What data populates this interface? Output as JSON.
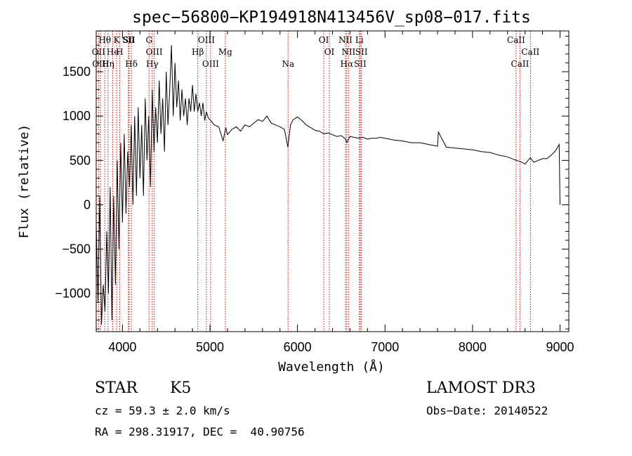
{
  "chart_data": {
    "type": "line",
    "title": "spec−56800−KP194918N413456V_sp08−017.fits",
    "xlabel": "Wavelength (Å)",
    "ylabel": "Flux (relative)",
    "xlim": [
      3700,
      9100
    ],
    "ylim": [
      -1430,
      1960
    ],
    "xticks": [
      4000,
      5000,
      6000,
      7000,
      8000,
      9000
    ],
    "yticks": [
      -1000,
      -500,
      0,
      500,
      1000,
      1500
    ],
    "ytick_labels": [
      "−1000",
      "−500",
      "0",
      "500",
      "1000",
      "1500"
    ],
    "series": [
      {
        "name": "flux",
        "x": [
          3700,
          3720,
          3740,
          3760,
          3780,
          3800,
          3820,
          3840,
          3860,
          3880,
          3900,
          3920,
          3940,
          3960,
          3980,
          4000,
          4020,
          4040,
          4060,
          4080,
          4100,
          4120,
          4140,
          4160,
          4180,
          4200,
          4220,
          4240,
          4260,
          4280,
          4300,
          4320,
          4340,
          4360,
          4380,
          4400,
          4420,
          4440,
          4460,
          4480,
          4500,
          4520,
          4540,
          4560,
          4580,
          4600,
          4620,
          4640,
          4660,
          4680,
          4700,
          4720,
          4740,
          4760,
          4780,
          4800,
          4820,
          4840,
          4860,
          4880,
          4900,
          4920,
          4940,
          4960,
          4980,
          5000,
          5050,
          5100,
          5150,
          5180,
          5200,
          5250,
          5300,
          5350,
          5400,
          5450,
          5500,
          5550,
          5600,
          5650,
          5700,
          5750,
          5800,
          5850,
          5890,
          5920,
          5950,
          6000,
          6050,
          6100,
          6150,
          6200,
          6250,
          6300,
          6350,
          6400,
          6450,
          6500,
          6550,
          6563,
          6600,
          6650,
          6700,
          6750,
          6800,
          6850,
          6900,
          6950,
          7000,
          7100,
          7200,
          7300,
          7400,
          7500,
          7600,
          7610,
          7700,
          7800,
          7900,
          8000,
          8100,
          8200,
          8300,
          8400,
          8500,
          8540,
          8600,
          8660,
          8700,
          8800,
          8850,
          8900,
          8950,
          8990,
          9000
        ],
        "values": [
          -200,
          -1100,
          100,
          -1350,
          -900,
          -1200,
          -300,
          -1000,
          200,
          -1300,
          100,
          -900,
          500,
          -500,
          700,
          -200,
          800,
          -100,
          600,
          200,
          900,
          0,
          1000,
          100,
          1100,
          300,
          900,
          100,
          1200,
          500,
          1000,
          200,
          1300,
          600,
          1100,
          700,
          1400,
          800,
          1200,
          600,
          1500,
          900,
          1300,
          1800,
          1000,
          1600,
          1100,
          1400,
          950,
          1300,
          1000,
          1200,
          900,
          1200,
          1050,
          1350,
          1050,
          1250,
          1050,
          1150,
          1000,
          1150,
          950,
          1050,
          980,
          960,
          900,
          880,
          720,
          870,
          790,
          850,
          880,
          830,
          900,
          880,
          920,
          960,
          940,
          1000,
          920,
          900,
          880,
          850,
          650,
          900,
          960,
          990,
          950,
          900,
          870,
          840,
          830,
          800,
          810,
          790,
          770,
          780,
          740,
          700,
          770,
          760,
          750,
          760,
          740,
          750,
          750,
          760,
          750,
          730,
          720,
          700,
          700,
          680,
          660,
          820,
          650,
          640,
          630,
          620,
          600,
          590,
          560,
          540,
          500,
          490,
          460,
          530,
          480,
          520,
          520,
          560,
          610,
          680,
          0
        ]
      }
    ],
    "line_labels": [
      {
        "label": "Hθ",
        "wl": 3798
      },
      {
        "label": "OII",
        "wl": 3727
      },
      {
        "label": "OIII",
        "wl": 3750
      },
      {
        "label": "K",
        "wl": 3934
      },
      {
        "label": "He",
        "wl": 3889
      },
      {
        "label": "Hη",
        "wl": 3835
      },
      {
        "label": "SII",
        "wl": 4068
      },
      {
        "label": "H",
        "wl": 3968
      },
      {
        "label": "Hδ",
        "wl": 4102
      },
      {
        "label": "SII",
        "wl": 4076
      },
      {
        "label": "OIII",
        "wl": 4363
      },
      {
        "label": "Hγ",
        "wl": 4340
      },
      {
        "label": "G",
        "wl": 4304
      },
      {
        "label": "Hβ",
        "wl": 4861
      },
      {
        "label": "OIII",
        "wl": 5007
      },
      {
        "label": "OIII",
        "wl": 4959
      },
      {
        "label": "Mg",
        "wl": 5175
      },
      {
        "label": "Na",
        "wl": 5893
      },
      {
        "label": "OI",
        "wl": 6300
      },
      {
        "label": "OI",
        "wl": 6364
      },
      {
        "label": "Hα",
        "wl": 6563
      },
      {
        "label": "NII",
        "wl": 6548
      },
      {
        "label": "NII",
        "wl": 6583
      },
      {
        "label": "SII",
        "wl": 6717
      },
      {
        "label": "Li",
        "wl": 6707
      },
      {
        "label": "SII",
        "wl": 6731
      },
      {
        "label": "CaII",
        "wl": 8542
      },
      {
        "label": "CaII",
        "wl": 8498
      },
      {
        "label": "CaII",
        "wl": 8662
      }
    ]
  },
  "info": {
    "class": "STAR",
    "subclass": "K5",
    "survey": "LAMOST DR3",
    "cz": "cz = 59.3 ± 2.0 km/s",
    "obs_date": "Obs−Date: 20140522",
    "radec": "RA = 298.31917, DEC =  40.90756"
  },
  "colors": {
    "axis": "#000000",
    "spectrum": "#000000",
    "lines": "#cc0000"
  }
}
